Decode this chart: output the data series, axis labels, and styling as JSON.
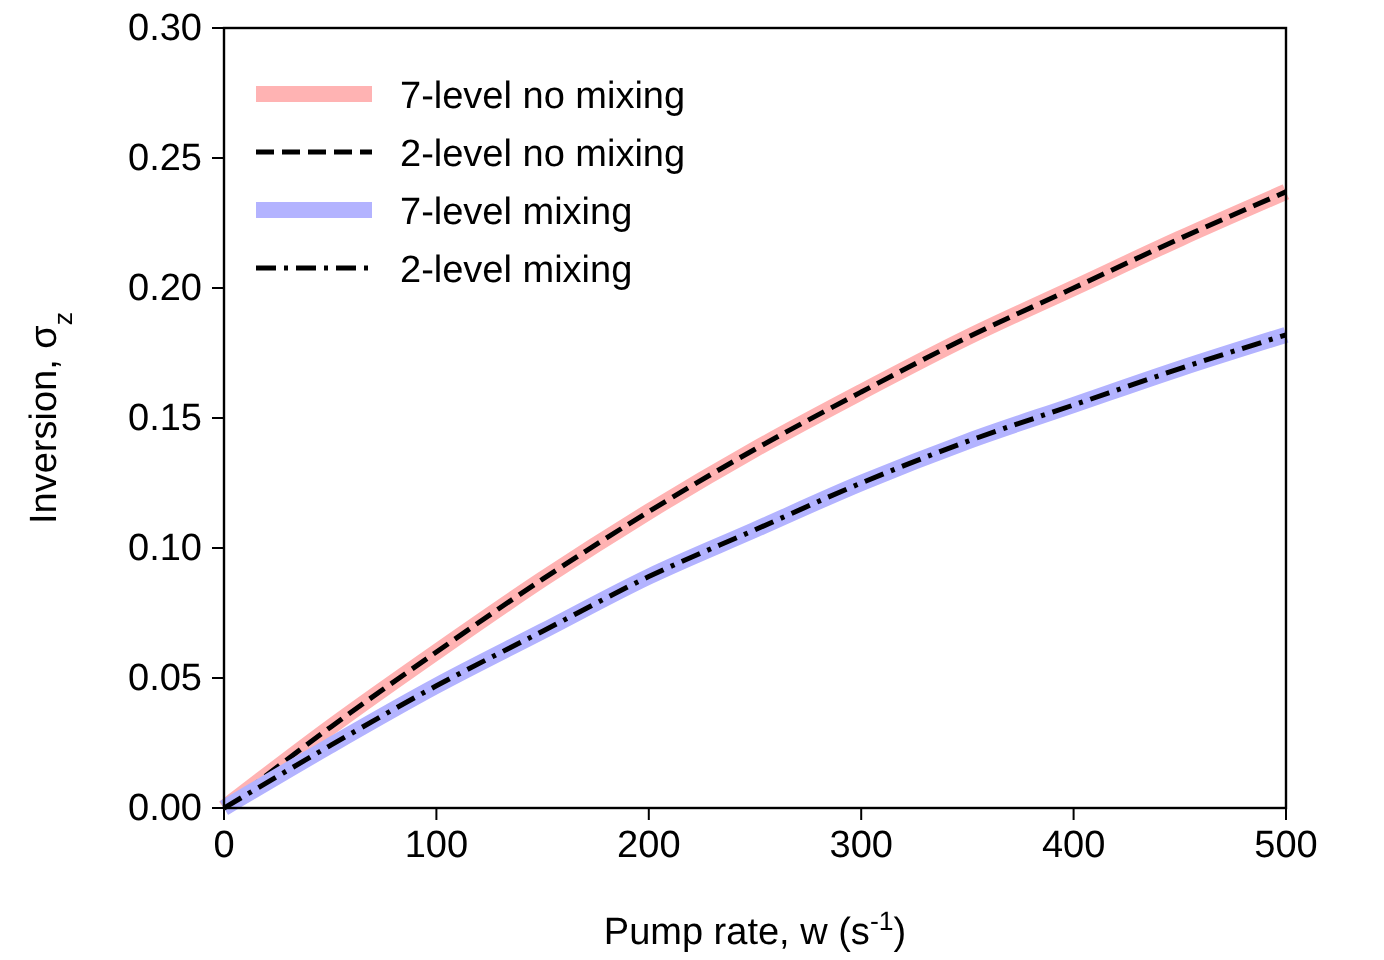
{
  "chart_data": {
    "type": "line",
    "xlabel": "Pump rate, w (s$^{-1}$)",
    "ylabel": "Inversion, σ$_{z}$",
    "x": [
      0,
      50,
      100,
      150,
      200,
      250,
      300,
      350,
      400,
      450,
      500
    ],
    "series": [
      {
        "name": "7-level no mixing",
        "color": "#ffb3b3",
        "line_style": "solid",
        "values": [
          0,
          0.031,
          0.06,
          0.088,
          0.114,
          0.138,
          0.16,
          0.181,
          0.2,
          0.219,
          0.237
        ]
      },
      {
        "name": "2-level no mixing",
        "color": "#000000",
        "line_style": "dashed",
        "values": [
          0,
          0.031,
          0.06,
          0.088,
          0.114,
          0.138,
          0.16,
          0.181,
          0.2,
          0.219,
          0.237
        ]
      },
      {
        "name": "7-level mixing",
        "color": "#b3b3ff",
        "line_style": "solid",
        "values": [
          0,
          0.024,
          0.047,
          0.068,
          0.089,
          0.107,
          0.125,
          0.141,
          0.155,
          0.169,
          0.182
        ]
      },
      {
        "name": "2-level mixing",
        "color": "#000000",
        "line_style": "dashdot",
        "values": [
          0,
          0.024,
          0.047,
          0.068,
          0.089,
          0.107,
          0.125,
          0.141,
          0.155,
          0.169,
          0.182
        ]
      }
    ],
    "xlim": [
      0,
      500
    ],
    "xticks": [
      0,
      100,
      200,
      300,
      400,
      500
    ],
    "ylim": [
      0,
      0.3
    ],
    "yticks": [
      {
        "value": 0,
        "label": "0.00"
      },
      {
        "value": 0.05,
        "label": "0.05"
      },
      {
        "value": 0.1,
        "label": "0.10"
      },
      {
        "value": 0.15,
        "label": "0.15"
      },
      {
        "value": 0.2,
        "label": "0.20"
      },
      {
        "value": 0.25,
        "label": "0.25"
      },
      {
        "value": 0.3,
        "label": "0.30"
      }
    ],
    "grid": false,
    "legend": "top left",
    "marker": "none"
  }
}
